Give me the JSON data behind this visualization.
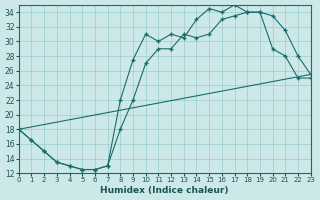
{
  "xlabel": "Humidex (Indice chaleur)",
  "background_color": "#cce8e8",
  "grid_color": "#99cccc",
  "line_color": "#1a6b6b",
  "xlim": [
    0,
    23
  ],
  "ylim": [
    12,
    35
  ],
  "xticks": [
    0,
    1,
    2,
    3,
    4,
    5,
    6,
    7,
    8,
    9,
    10,
    11,
    12,
    13,
    14,
    15,
    16,
    17,
    18,
    19,
    20,
    21,
    22,
    23
  ],
  "yticks": [
    12,
    14,
    16,
    18,
    20,
    22,
    24,
    26,
    28,
    30,
    32,
    34
  ],
  "curve1_x": [
    0,
    1,
    2,
    3,
    4,
    5,
    6,
    7,
    8,
    9,
    10,
    11,
    12,
    13,
    14,
    15,
    16,
    17,
    18,
    19,
    20,
    21,
    22,
    23
  ],
  "curve1_y": [
    18,
    16.5,
    15,
    13.5,
    13,
    12.5,
    12.5,
    13,
    18,
    22,
    27,
    29,
    29,
    31,
    30.5,
    31,
    33,
    33.5,
    34,
    34,
    29,
    28,
    25,
    25
  ],
  "curve2_x": [
    0,
    1,
    2,
    3,
    4,
    5,
    6,
    7,
    8,
    9,
    10,
    11,
    12,
    13,
    14,
    15,
    16,
    17,
    18,
    19,
    20,
    21,
    22,
    23
  ],
  "curve2_y": [
    18,
    16.5,
    15,
    13.5,
    13,
    12.5,
    12.5,
    13,
    22,
    27.5,
    31,
    30,
    31,
    30.5,
    33,
    34.5,
    34,
    35,
    34,
    34,
    33.5,
    31.5,
    28,
    25.5
  ],
  "line_x": [
    0,
    23
  ],
  "line_y": [
    18,
    25.5
  ]
}
